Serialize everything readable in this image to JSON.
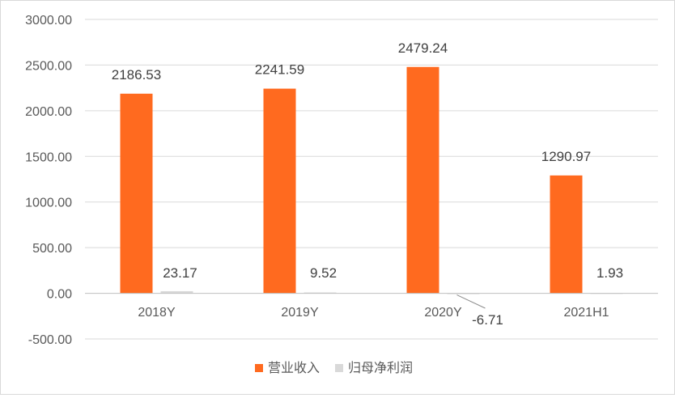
{
  "colors": {
    "revenue": "#FF6A1F",
    "net_profit": "#D9D9D9",
    "grid": "#D9D9D9",
    "axis": "#BFBFBF",
    "text": "#595959"
  },
  "chart_data": {
    "type": "bar",
    "categories": [
      "2018Y",
      "2019Y",
      "2020Y",
      "2021H1"
    ],
    "series": [
      {
        "name": "营业收入",
        "values": [
          2186.53,
          2241.59,
          2479.24,
          1290.97
        ],
        "labels": [
          "2186.53",
          "2241.59",
          "2479.24",
          "1290.97"
        ]
      },
      {
        "name": "归母净利润",
        "values": [
          23.17,
          9.52,
          -6.71,
          1.93
        ],
        "labels": [
          "23.17",
          "9.52",
          "-6.71",
          "1.93"
        ]
      }
    ],
    "ylim": [
      -500,
      3000
    ],
    "yticks": [
      3000,
      2500,
      2000,
      1500,
      1000,
      500,
      0,
      -500
    ],
    "ytick_labels": [
      "3000.00",
      "2500.00",
      "2000.00",
      "1500.00",
      "1000.00",
      "500.00",
      "0.00",
      "-500.00"
    ],
    "grid": true,
    "legend_position": "bottom"
  }
}
